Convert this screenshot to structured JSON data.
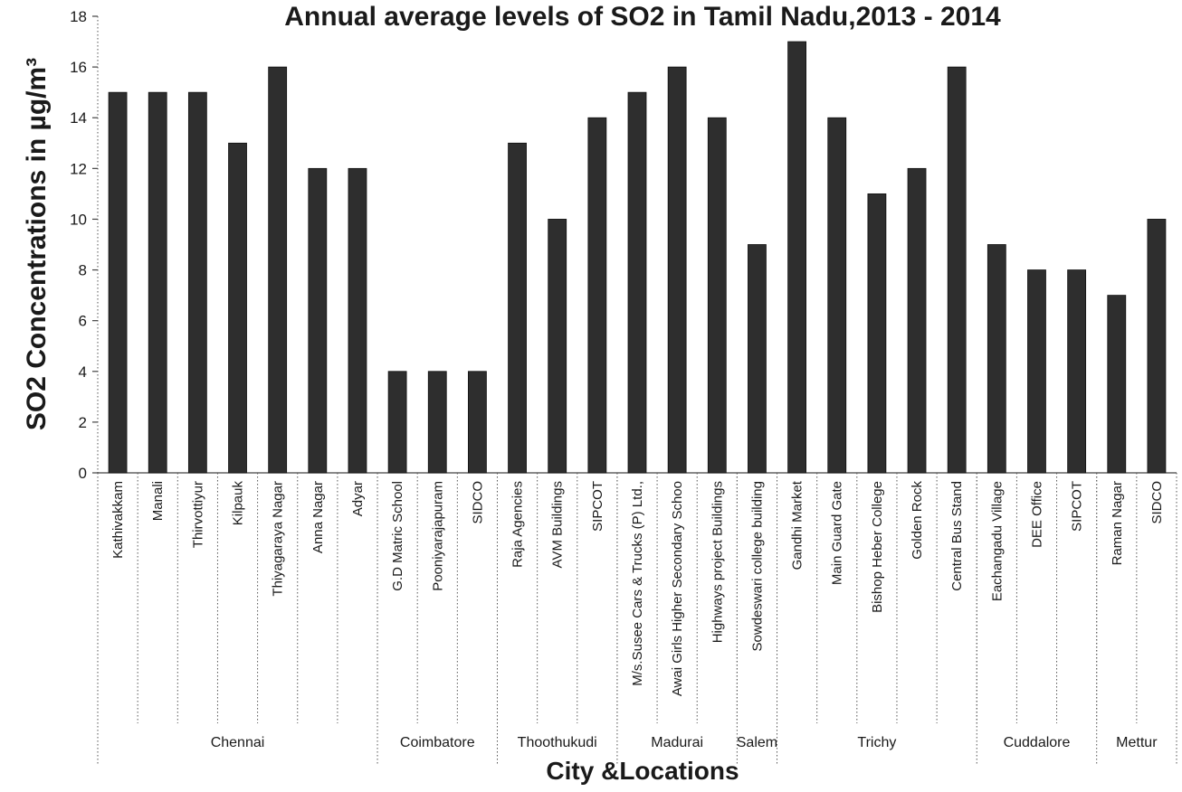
{
  "chart_data": {
    "type": "bar",
    "title": "Annual average levels of SO2 in Tamil Nadu,2013 - 2014",
    "ylabel": "SO2  Concentrations in µg/m³",
    "xlabel": "City &Locations",
    "ylim": [
      0,
      18
    ],
    "yticks": [
      0,
      2,
      4,
      6,
      8,
      10,
      12,
      14,
      16,
      18
    ],
    "grid": false,
    "legend": "none",
    "bar_color": "#2e2e2e",
    "categories": [
      "Kathivakkam",
      "Manali",
      "Thirvottiyur",
      "Kilpauk",
      "Thiyagaraya Nagar",
      "Anna Nagar",
      "Adyar",
      "G.D Matric School",
      "Pooniyarajapuram",
      "SIDCO",
      "Raja Agencies",
      "AVM Buildings",
      "SIPCOT",
      "M/s.Susee Cars & Trucks (P) Ltd.,",
      "Awai Girls Higher Secondary Schoo",
      "Highways project Buildings",
      "Sowdeswari college building",
      "Gandhi Market",
      "Main Guard Gate",
      "Bishop Heber College",
      "Golden Rock",
      "Central Bus Stand",
      "Eachangadu Village",
      "DEE Office",
      "SIPCOT",
      "Raman Nagar",
      "SIDCO"
    ],
    "values": [
      15,
      15,
      15,
      13,
      16,
      12,
      12,
      4,
      4,
      4,
      13,
      10,
      14,
      15,
      16,
      14,
      9,
      17,
      14,
      11,
      12,
      16,
      9,
      8,
      8,
      7,
      10
    ],
    "groups": [
      {
        "name": "Chennai",
        "start": 0,
        "end": 6
      },
      {
        "name": "Coimbatore",
        "start": 7,
        "end": 9
      },
      {
        "name": "Thoothukudi",
        "start": 10,
        "end": 12
      },
      {
        "name": "Madurai",
        "start": 13,
        "end": 15
      },
      {
        "name": "Salem",
        "start": 16,
        "end": 16
      },
      {
        "name": "Trichy",
        "start": 17,
        "end": 21
      },
      {
        "name": "Cuddalore",
        "start": 22,
        "end": 24
      },
      {
        "name": "Mettur",
        "start": 25,
        "end": 26
      }
    ]
  }
}
